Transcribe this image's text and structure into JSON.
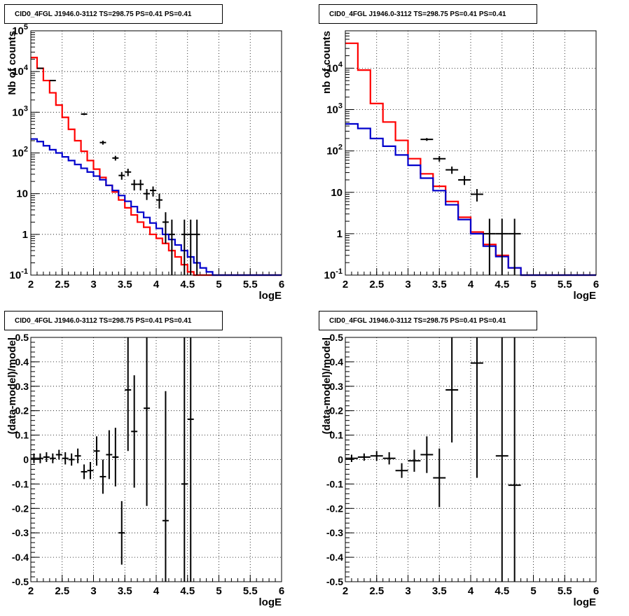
{
  "chart_data": [
    {
      "type": "step-histogram",
      "title": "CID0_4FGL J1946.0-3112 TS=298.75 PS=0.41 PS=0.41",
      "xlabel": "logE",
      "ylabel": "Nb of counts",
      "log_y": true,
      "xlim": [
        2,
        6
      ],
      "ylim": [
        0.1,
        100000
      ],
      "x_ticks": [
        "2",
        "2.5",
        "3",
        "3.5",
        "4",
        "4.5",
        "5",
        "5.5",
        "6"
      ],
      "y_ticks": [
        "10^-1",
        "1",
        "10",
        "10^2",
        "10^3",
        "10^4",
        "10^5"
      ],
      "grid": true,
      "bin_width": 0.1,
      "series": [
        {
          "color": "#ff0000",
          "x_edges_start": 2.0,
          "values": [
            22000,
            12000,
            6000,
            3000,
            1500,
            750,
            380,
            200,
            110,
            65,
            40,
            25,
            16,
            11,
            7,
            4.5,
            3,
            2,
            1.5,
            1,
            0.8,
            0.6,
            0.4,
            0.28,
            0.18,
            0.12,
            0.1,
            0.1,
            0.1,
            0.1,
            0.1,
            0.1,
            0.1,
            0.1,
            0.1,
            0.1,
            0.1,
            0.1,
            0.1,
            0.1
          ]
        },
        {
          "color": "#0000cc",
          "x_edges_start": 2.0,
          "values": [
            220,
            190,
            150,
            120,
            100,
            80,
            65,
            52,
            42,
            34,
            27,
            22,
            16,
            12,
            9,
            6.5,
            4.8,
            3.5,
            2.6,
            1.9,
            1.4,
            1.0,
            0.75,
            0.55,
            0.4,
            0.28,
            0.2,
            0.15,
            0.12,
            0.1,
            0.1,
            0.1,
            0.1,
            0.1,
            0.1,
            0.1,
            0.1,
            0.1,
            0.1,
            0.1
          ]
        }
      ],
      "points": [
        {
          "x": 2.15,
          "y": 12000,
          "ylo": 12000,
          "yhi": 12000
        },
        {
          "x": 2.35,
          "y": 6000,
          "ylo": 6000,
          "yhi": 6000
        },
        {
          "x": 2.85,
          "y": 900,
          "ylo": 850,
          "yhi": 950
        },
        {
          "x": 3.15,
          "y": 180,
          "ylo": 160,
          "yhi": 200
        },
        {
          "x": 3.35,
          "y": 75,
          "ylo": 65,
          "yhi": 85
        },
        {
          "x": 3.45,
          "y": 28,
          "ylo": 22,
          "yhi": 34
        },
        {
          "x": 3.55,
          "y": 34,
          "ylo": 27,
          "yhi": 41
        },
        {
          "x": 3.65,
          "y": 17,
          "ylo": 12,
          "yhi": 22
        },
        {
          "x": 3.75,
          "y": 17,
          "ylo": 12,
          "yhi": 22
        },
        {
          "x": 3.85,
          "y": 10,
          "ylo": 7,
          "yhi": 13
        },
        {
          "x": 3.95,
          "y": 12,
          "ylo": 8.5,
          "yhi": 15
        },
        {
          "x": 4.05,
          "y": 7,
          "ylo": 4.3,
          "yhi": 10
        },
        {
          "x": 4.15,
          "y": 2,
          "ylo": 0.6,
          "yhi": 3.5
        },
        {
          "x": 4.25,
          "y": 1,
          "ylo": 0.1,
          "yhi": 2.3
        },
        {
          "x": 4.45,
          "y": 1,
          "ylo": 0.1,
          "yhi": 2.3
        },
        {
          "x": 4.55,
          "y": 1,
          "ylo": 0.1,
          "yhi": 2.3
        },
        {
          "x": 4.65,
          "y": 1,
          "ylo": 0.1,
          "yhi": 2.3
        }
      ]
    },
    {
      "type": "step-histogram",
      "title": "CID0_4FGL J1946.0-3112 TS=298.75 PS=0.41 PS=0.41",
      "xlabel": "logE",
      "ylabel": "nb of counts",
      "log_y": true,
      "xlim": [
        2,
        6
      ],
      "ylim": [
        0.1,
        80000
      ],
      "x_ticks": [
        "2",
        "2.5",
        "3",
        "3.5",
        "4",
        "4.5",
        "5",
        "5.5",
        "6"
      ],
      "y_ticks": [
        "10^-1",
        "1",
        "10",
        "10^2",
        "10^3",
        "10^4"
      ],
      "grid": true,
      "bin_width": 0.2,
      "series": [
        {
          "color": "#ff0000",
          "x_edges_start": 2.0,
          "values": [
            40000,
            9000,
            1400,
            500,
            180,
            65,
            28,
            14,
            6,
            2.5,
            1.1,
            0.55,
            0.3,
            0.15,
            0.1,
            0.1,
            0.1,
            0.1,
            0.1,
            0.1
          ]
        },
        {
          "color": "#0000cc",
          "x_edges_start": 2.0,
          "values": [
            450,
            350,
            200,
            130,
            80,
            45,
            22,
            11,
            5,
            2.2,
            1.0,
            0.5,
            0.28,
            0.15,
            0.1,
            0.1,
            0.1,
            0.1,
            0.1,
            0.1
          ]
        }
      ],
      "points": [
        {
          "x": 3.3,
          "y": 190,
          "ylo": 175,
          "yhi": 205
        },
        {
          "x": 3.5,
          "y": 65,
          "ylo": 55,
          "yhi": 75
        },
        {
          "x": 3.7,
          "y": 35,
          "ylo": 28,
          "yhi": 42
        },
        {
          "x": 3.9,
          "y": 20,
          "ylo": 15,
          "yhi": 25
        },
        {
          "x": 4.1,
          "y": 9,
          "ylo": 6,
          "yhi": 12
        },
        {
          "x": 4.3,
          "y": 1,
          "ylo": 0.1,
          "yhi": 2.3
        },
        {
          "x": 4.5,
          "y": 1,
          "ylo": 0.1,
          "yhi": 2.3
        },
        {
          "x": 4.7,
          "y": 1,
          "ylo": 0.1,
          "yhi": 2.3
        }
      ]
    },
    {
      "type": "scatter",
      "title": "CID0_4FGL J1946.0-3112 TS=298.75 PS=0.41 PS=0.41",
      "xlabel": "logE",
      "ylabel": "(data-model)/model",
      "xlim": [
        2,
        6
      ],
      "ylim": [
        -0.5,
        0.5
      ],
      "x_ticks": [
        "2",
        "2.5",
        "3",
        "3.5",
        "4",
        "4.5",
        "5",
        "5.5",
        "6"
      ],
      "y_ticks": [
        "-0.5",
        "-0.4",
        "-0.3",
        "-0.2",
        "-0.1",
        "0",
        "0.1",
        "0.2",
        "0.3",
        "0.4",
        "0.5"
      ],
      "grid": true,
      "bin_width": 0.1,
      "points": [
        {
          "x": 2.05,
          "y": 0.005,
          "err": 0.02
        },
        {
          "x": 2.15,
          "y": 0.005,
          "err": 0.02
        },
        {
          "x": 2.25,
          "y": 0.01,
          "err": 0.02
        },
        {
          "x": 2.35,
          "y": 0.005,
          "err": 0.02
        },
        {
          "x": 2.45,
          "y": 0.02,
          "err": 0.02
        },
        {
          "x": 2.55,
          "y": 0.005,
          "err": 0.025
        },
        {
          "x": 2.65,
          "y": 0.0,
          "err": 0.025
        },
        {
          "x": 2.75,
          "y": 0.015,
          "err": 0.03
        },
        {
          "x": 2.85,
          "y": -0.05,
          "err": 0.03
        },
        {
          "x": 2.95,
          "y": -0.045,
          "err": 0.035
        },
        {
          "x": 3.05,
          "y": 0.035,
          "err": 0.06
        },
        {
          "x": 3.15,
          "y": -0.07,
          "err": 0.07
        },
        {
          "x": 3.25,
          "y": 0.02,
          "err": 0.1
        },
        {
          "x": 3.35,
          "y": 0.01,
          "err": 0.12
        },
        {
          "x": 3.45,
          "y": -0.3,
          "err": 0.13
        },
        {
          "x": 3.55,
          "y": 0.285,
          "err": 0.25
        },
        {
          "x": 3.65,
          "y": 0.115,
          "err": 0.23
        },
        {
          "x": 3.85,
          "y": 0.21,
          "err": 0.4
        },
        {
          "x": 4.15,
          "y": -0.25,
          "err": 0.53
        },
        {
          "x": 4.45,
          "y": -0.1,
          "err": 1.0
        },
        {
          "x": 4.55,
          "y": 0.165,
          "err": 1.0
        }
      ]
    },
    {
      "type": "scatter",
      "title": "CID0_4FGL J1946.0-3112 TS=298.75 PS=0.41 PS=0.41",
      "xlabel": "logE",
      "ylabel": "(data-model)/model",
      "xlim": [
        2,
        6
      ],
      "ylim": [
        -0.5,
        0.5
      ],
      "x_ticks": [
        "2",
        "2.5",
        "3",
        "3.5",
        "4",
        "4.5",
        "5",
        "5.5",
        "6"
      ],
      "y_ticks": [
        "-0.5",
        "-0.4",
        "-0.3",
        "-0.2",
        "-0.1",
        "0",
        "0.1",
        "0.2",
        "0.3",
        "0.4",
        "0.5"
      ],
      "grid": true,
      "bin_width": 0.2,
      "points": [
        {
          "x": 2.1,
          "y": 0.005,
          "err": 0.015
        },
        {
          "x": 2.3,
          "y": 0.01,
          "err": 0.015
        },
        {
          "x": 2.5,
          "y": 0.015,
          "err": 0.02
        },
        {
          "x": 2.7,
          "y": 0.005,
          "err": 0.025
        },
        {
          "x": 2.9,
          "y": -0.045,
          "err": 0.03
        },
        {
          "x": 3.1,
          "y": -0.005,
          "err": 0.045
        },
        {
          "x": 3.3,
          "y": 0.02,
          "err": 0.075
        },
        {
          "x": 3.5,
          "y": -0.075,
          "err": 0.12
        },
        {
          "x": 3.7,
          "y": 0.285,
          "err": 0.215
        },
        {
          "x": 4.1,
          "y": 0.395,
          "err": 0.47
        },
        {
          "x": 4.5,
          "y": 0.015,
          "err": 1.0
        },
        {
          "x": 4.7,
          "y": -0.105,
          "err": 1.0
        }
      ]
    }
  ]
}
